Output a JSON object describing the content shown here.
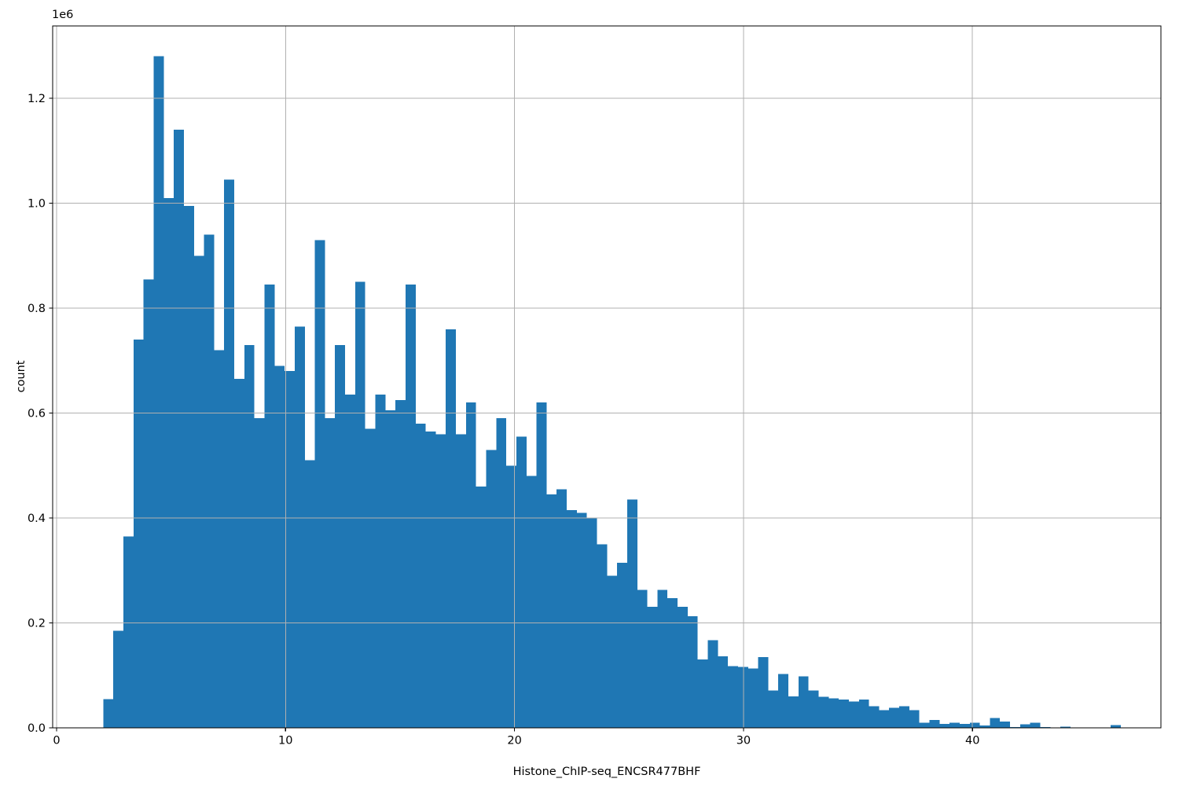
{
  "figure": {
    "xlabel": "Histone_ChIP-seq_ENCSR477BHF",
    "ylabel": "count",
    "offset_label": "1e6",
    "colors": {
      "bar": "#1f77b4",
      "grid": "#b0b0b0",
      "axis": "#000000",
      "background": "#ffffff"
    }
  },
  "chart_data": {
    "type": "bar",
    "subtype": "histogram",
    "title": "",
    "xlabel": "Histone_ChIP-seq_ENCSR477BHF",
    "ylabel": "count",
    "y_scale_factor_label": "1e6",
    "legend": null,
    "grid": true,
    "grid_above_bars": true,
    "bin_start": 2.04,
    "bin_width": 0.44,
    "xlim": [
      -0.17,
      48.23
    ],
    "ylim_millions": [
      0,
      1.338
    ],
    "x_ticks": [
      0,
      10,
      20,
      30,
      40
    ],
    "x_tick_labels": [
      "0",
      "10",
      "20",
      "30",
      "40"
    ],
    "y_ticks_millions": [
      0,
      0.2,
      0.4,
      0.6,
      0.8,
      1.0,
      1.2
    ],
    "y_tick_labels": [
      "0.0",
      "0.2",
      "0.4",
      "0.6",
      "0.8",
      "1.0",
      "1.2"
    ],
    "counts_millions": [
      0.055,
      0.185,
      0.365,
      0.74,
      0.855,
      1.28,
      1.01,
      1.14,
      0.995,
      0.9,
      0.94,
      0.72,
      1.045,
      0.665,
      0.73,
      0.59,
      0.845,
      0.69,
      0.68,
      0.765,
      0.51,
      0.93,
      0.59,
      0.73,
      0.635,
      0.85,
      0.57,
      0.635,
      0.605,
      0.625,
      0.845,
      0.58,
      0.565,
      0.56,
      0.76,
      0.56,
      0.62,
      0.46,
      0.53,
      0.59,
      0.5,
      0.555,
      0.48,
      0.62,
      0.445,
      0.455,
      0.415,
      0.41,
      0.4,
      0.35,
      0.29,
      0.315,
      0.435,
      0.263,
      0.231,
      0.263,
      0.247,
      0.231,
      0.213,
      0.13,
      0.167,
      0.136,
      0.118,
      0.116,
      0.113,
      0.135,
      0.071,
      0.103,
      0.06,
      0.098,
      0.071,
      0.059,
      0.056,
      0.054,
      0.05,
      0.054,
      0.041,
      0.034,
      0.038,
      0.041,
      0.034,
      0.01,
      0.015,
      0.0075,
      0.01,
      0.0075,
      0.01,
      0.0045,
      0.019,
      0.012,
      0.0015,
      0.0065,
      0.01,
      0.0015,
      0.001,
      0.0025,
      0.001,
      0.0005,
      0.0005,
      0.0005,
      0.0055
    ]
  }
}
